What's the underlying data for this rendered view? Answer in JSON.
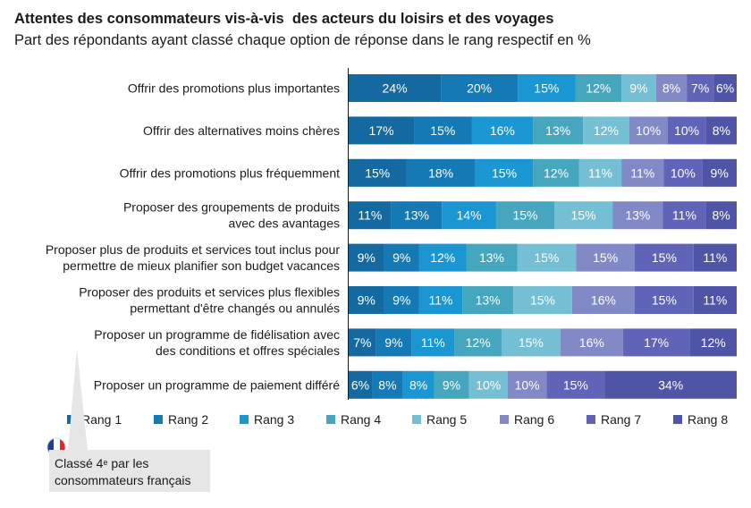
{
  "chart_data": {
    "type": "bar",
    "stacked": true,
    "orientation": "horizontal",
    "title": "Attentes des consommateurs vis-à-vis  des acteurs du loisirs et des voyages",
    "subtitle": "Part des répondants ayant classé chaque option de réponse dans le rang respectif en %",
    "categories": [
      [
        "Offrir des promotions plus importantes"
      ],
      [
        "Offrir des alternatives moins chères"
      ],
      [
        "Offrir des promotions plus fréquemment"
      ],
      [
        "Proposer des groupements de produits",
        "avec des avantages"
      ],
      [
        "Proposer plus de produits et services tout inclus pour",
        "permettre de mieux planifier son budget vacances"
      ],
      [
        "Proposer des produits et services plus flexibles",
        "permettant d'être changés ou annulés"
      ],
      [
        "Proposer un programme de fidélisation avec",
        "des conditions et offres spéciales"
      ],
      [
        "Proposer un programme de paiement différé"
      ]
    ],
    "series": [
      {
        "name": "Rang 1",
        "color": "#1469a0",
        "values": [
          24,
          17,
          15,
          11,
          9,
          9,
          7,
          6
        ]
      },
      {
        "name": "Rang 2",
        "color": "#1479b5",
        "values": [
          20,
          15,
          18,
          13,
          9,
          9,
          9,
          8
        ]
      },
      {
        "name": "Rang 3",
        "color": "#1a96d3",
        "values": [
          15,
          16,
          15,
          14,
          12,
          11,
          11,
          8
        ]
      },
      {
        "name": "Rang 4",
        "color": "#45a6be",
        "values": [
          12,
          13,
          12,
          15,
          13,
          13,
          12,
          9
        ]
      },
      {
        "name": "Rang 5",
        "color": "#74bfd3",
        "values": [
          9,
          12,
          11,
          15,
          15,
          15,
          15,
          10
        ]
      },
      {
        "name": "Rang 6",
        "color": "#8289c7",
        "values": [
          8,
          10,
          11,
          13,
          15,
          16,
          16,
          10
        ]
      },
      {
        "name": "Rang 7",
        "color": "#6064b8",
        "values": [
          7,
          10,
          10,
          11,
          15,
          15,
          17,
          15
        ]
      },
      {
        "name": "Rang 8",
        "color": "#4e55a6",
        "values": [
          6,
          8,
          9,
          8,
          11,
          11,
          12,
          34
        ]
      }
    ],
    "value_suffix": "%",
    "legend_position": "bottom",
    "grid": false
  },
  "callout": {
    "text_before": "Classé 4",
    "superscript": "e",
    "text_after": " par les",
    "line2": "consommateurs français",
    "flag": "french-flag"
  }
}
